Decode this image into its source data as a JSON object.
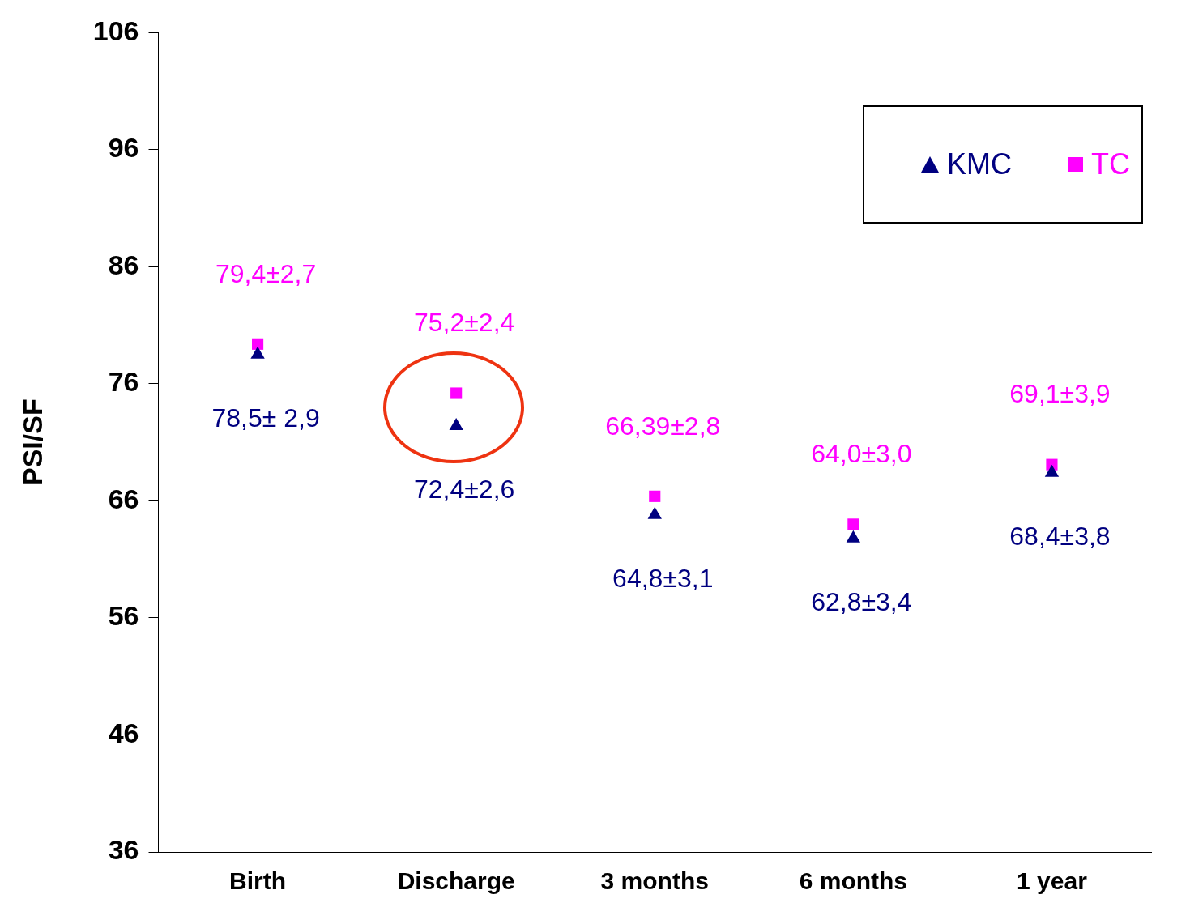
{
  "chart_data": {
    "type": "scatter",
    "ylabel": "PSI/SF",
    "categories": [
      "Birth",
      "Discharge",
      "3 months",
      "6 months",
      "1 year"
    ],
    "series": [
      {
        "name": "KMC",
        "color": "#000080",
        "marker": "triangle",
        "values": [
          78.5,
          72.4,
          64.8,
          62.8,
          68.4
        ],
        "value_labels": [
          "78,5± 2,9",
          "72,4±2,6",
          "64,8±3,1",
          "62,8±3,4",
          "68,4±3,8"
        ]
      },
      {
        "name": "TC",
        "color": "#ff00ff",
        "marker": "square",
        "values": [
          79.4,
          75.2,
          66.39,
          64.0,
          69.1
        ],
        "value_labels": [
          "79,4±2,7",
          "75,2±2,4",
          "66,39±2,8",
          "64,0±3,0",
          "69,1±3,9"
        ]
      }
    ],
    "ylim": [
      36,
      106
    ],
    "yticks": [
      36,
      46,
      56,
      66,
      76,
      86,
      96,
      106
    ],
    "grid": false,
    "legend": "top right"
  }
}
